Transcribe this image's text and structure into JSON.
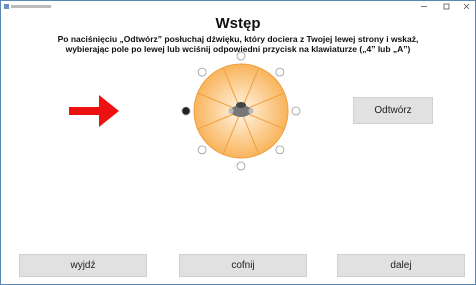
{
  "header": {
    "title": "Wstęp",
    "instructions": [
      "Po naciśnięciu „Odtwórz” posłuchaj dźwięku, który dociera z Twojej lewej strony i wskaż,",
      "wybierając pole po lewej lub wciśnij odpowiedni przycisk na klawiaturze („4” lub „A”)"
    ]
  },
  "buttons": {
    "play": "Odtwórz",
    "exit": "wyjdź",
    "back": "cofnij",
    "next": "dalej"
  }
}
